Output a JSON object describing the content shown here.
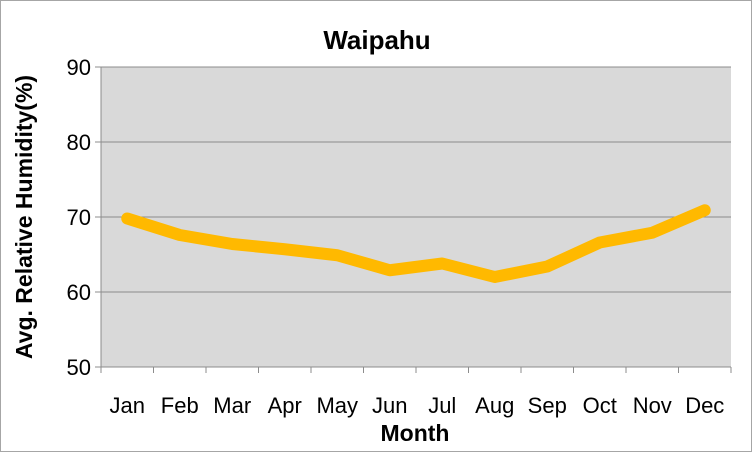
{
  "chart_data": {
    "type": "line",
    "title": "Waipahu",
    "xlabel": "Month",
    "ylabel": "Avg. Relative Humidity(%)",
    "categories": [
      "Jan",
      "Feb",
      "Mar",
      "Apr",
      "May",
      "Jun",
      "Jul",
      "Aug",
      "Sep",
      "Oct",
      "Nov",
      "Dec"
    ],
    "series": [
      {
        "values": [
          69.8,
          67.6,
          66.4,
          65.7,
          64.9,
          62.9,
          63.8,
          62.0,
          63.4,
          66.6,
          67.9,
          70.9
        ]
      }
    ],
    "ylim": [
      50,
      90
    ],
    "yticks": [
      50,
      60,
      70,
      80,
      90
    ],
    "grid": true,
    "legend": "none",
    "colors": {
      "line": "#ffb900",
      "plot_bg": "#d9d9d9",
      "grid": "#8c8c8c"
    }
  }
}
